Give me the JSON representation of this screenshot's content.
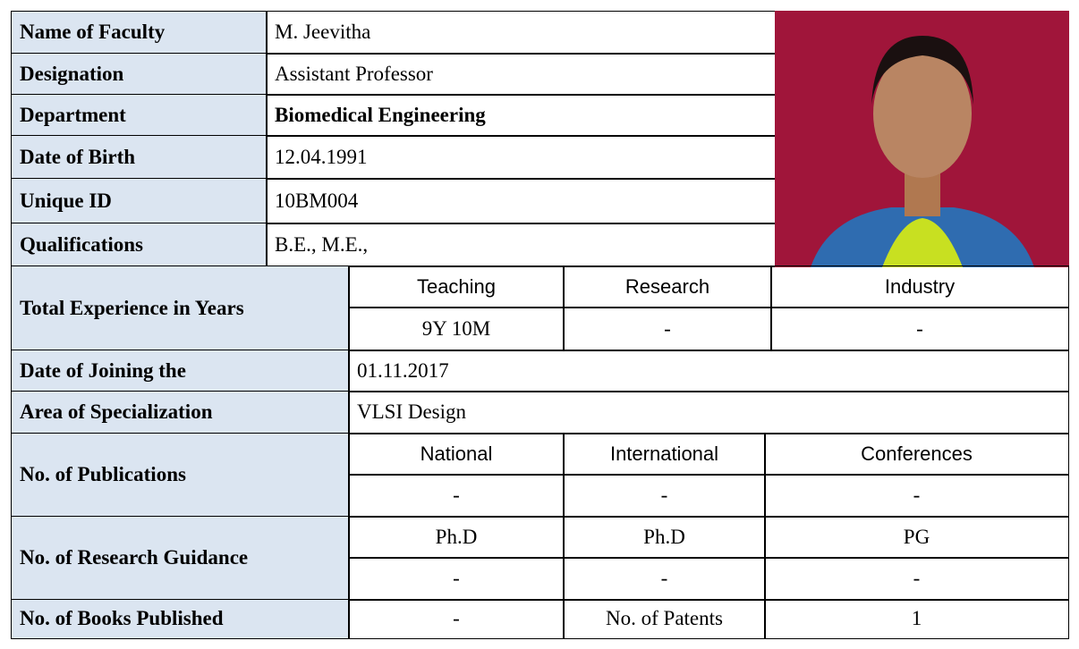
{
  "fields": [
    {
      "label": "Name of Faculty",
      "value": "M. Jeevitha"
    },
    {
      "label": "Designation",
      "value": "Assistant Professor"
    },
    {
      "label": "Department",
      "value": "Biomedical Engineering"
    },
    {
      "label": "Date of Birth",
      "value": "12.04.1991"
    },
    {
      "label": "Unique ID",
      "value": "10BM004"
    },
    {
      "label": "Qualifications",
      "value": "B.E., M.E.,"
    }
  ],
  "experience": {
    "label": "Total Experience in Years",
    "columns": [
      "Teaching",
      "Research",
      "Industry"
    ],
    "values": [
      "9Y 10M",
      "-",
      "-"
    ]
  },
  "joining": {
    "label": "Date of Joining the",
    "value": "01.11.2017"
  },
  "specialization": {
    "label": "Area of Specialization",
    "value": "VLSI Design"
  },
  "publications": {
    "label": "No. of  Publications",
    "columns": [
      "National",
      "International",
      "Conferences"
    ],
    "values": [
      "-",
      "-",
      "-"
    ]
  },
  "research_guidance": {
    "label": "No. of Research Guidance",
    "columns": [
      "Ph.D",
      "Ph.D",
      "PG"
    ],
    "values": [
      "-",
      "-",
      "-"
    ]
  },
  "books": {
    "label": "No. of Books Published",
    "value": "-",
    "patents_label": "No. of Patents",
    "patents_value": 1
  }
}
